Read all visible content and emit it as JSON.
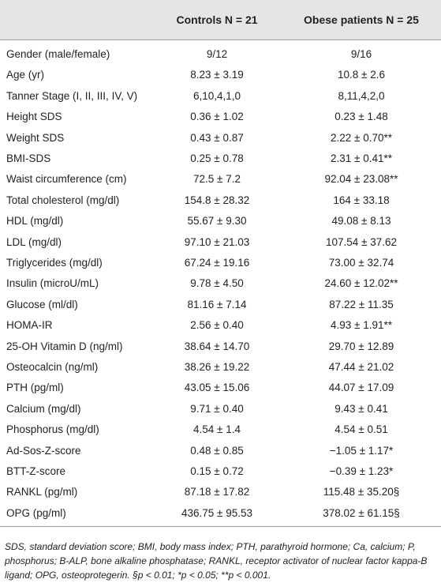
{
  "table": {
    "header": [
      "Controls N = 21",
      "Obese patients N = 25"
    ],
    "rows": [
      [
        "Gender (male/female)",
        "9/12",
        "9/16"
      ],
      [
        "Age (yr)",
        "8.23 ± 3.19",
        "10.8 ± 2.6"
      ],
      [
        "Tanner Stage (I, II, III, IV, V)",
        "6,10,4,1,0",
        "8,11,4,2,0"
      ],
      [
        "Height SDS",
        "0.36 ± 1.02",
        "0.23 ± 1.48"
      ],
      [
        "Weight SDS",
        "0.43 ± 0.87",
        "2.22 ± 0.70**"
      ],
      [
        "BMI-SDS",
        "0.25 ± 0.78",
        "2.31 ± 0.41**"
      ],
      [
        "Waist circumference (cm)",
        "72.5 ± 7.2",
        "92.04 ± 23.08**"
      ],
      [
        "Total cholesterol (mg/dl)",
        "154.8 ± 28.32",
        "164 ± 33.18"
      ],
      [
        "HDL (mg/dl)",
        "55.67 ± 9.30",
        "49.08 ± 8.13"
      ],
      [
        "LDL (mg/dl)",
        "97.10 ± 21.03",
        "107.54 ± 37.62"
      ],
      [
        "Triglycerides (mg/dl)",
        "67.24 ± 19.16",
        "73.00 ± 32.74"
      ],
      [
        "Insulin (microU/mL)",
        "9.78 ± 4.50",
        "24.60 ± 12.02**"
      ],
      [
        "Glucose (ml/dl)",
        "81.16 ± 7.14",
        "87.22 ± 11.35"
      ],
      [
        "HOMA-IR",
        "2.56 ± 0.40",
        "4.93 ± 1.91**"
      ],
      [
        "25-OH Vitamin D (ng/ml)",
        "38.64 ± 14.70",
        "29.70 ± 12.89"
      ],
      [
        "Osteocalcin (ng/ml)",
        "38.26 ± 19.22",
        "47.44 ± 21.02"
      ],
      [
        "PTH (pg/ml)",
        "43.05 ± 15.06",
        "44.07 ± 17.09"
      ],
      [
        "Calcium (mg/dl)",
        "9.71 ± 0.40",
        "9.43 ± 0.41"
      ],
      [
        "Phosphorus (mg/dl)",
        "4.54 ± 1.4",
        "4.54 ± 0.51"
      ],
      [
        "Ad-Sos-Z-score",
        "0.48 ± 0.85",
        "−1.05 ± 1.17*"
      ],
      [
        "BTT-Z-score",
        "0.15 ± 0.72",
        "−0.39 ± 1.23*"
      ],
      [
        "RANKL (pg/ml)",
        "87.18 ± 17.82",
        "115.48 ± 35.20§"
      ],
      [
        "OPG (pg/ml)",
        "436.75 ± 95.53",
        "378.02 ± 61.15§"
      ]
    ]
  },
  "footnote": "SDS, standard deviation score; BMI, body mass index; PTH, parathyroid hormone; Ca, calcium; P, phosphorus; B-ALP, bone alkaline phosphatase; RANKL, receptor activator of nuclear factor kappa-B ligand; OPG, osteoprotegerin. §p < 0.01; *p < 0.05; **p < 0.001."
}
